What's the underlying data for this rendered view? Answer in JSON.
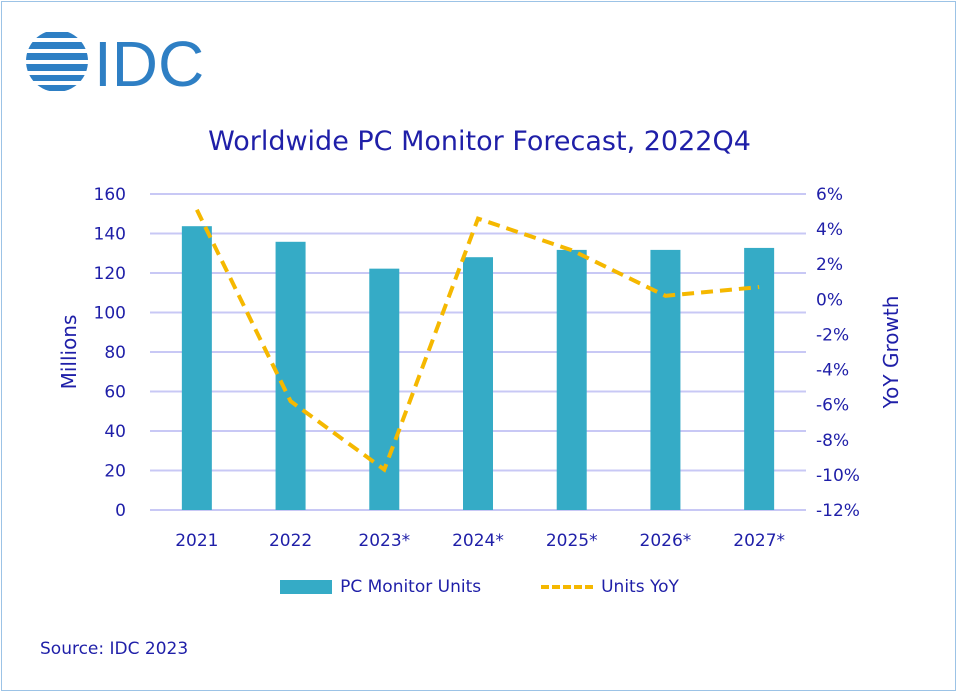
{
  "logo_text": "IDC",
  "chart_data": {
    "type": "bar+line",
    "title": "Worldwide PC Monitor Forecast, 2022Q4",
    "categories": [
      "2021",
      "2022",
      "2023*",
      "2024*",
      "2025*",
      "2026*",
      "2027*"
    ],
    "series": [
      {
        "name": "PC Monitor Units",
        "type": "bar",
        "axis": "left",
        "values": [
          143.7,
          135.8,
          122.2,
          128.0,
          131.7,
          131.7,
          132.7
        ]
      },
      {
        "name": "Units YoY",
        "type": "line",
        "axis": "right",
        "style": "dashed",
        "values": [
          5.1,
          -5.8,
          -9.7,
          4.6,
          2.8,
          0.2,
          0.7
        ]
      }
    ],
    "ylabel": "Millions",
    "ylim": [
      0,
      160
    ],
    "yticks": [
      "0",
      "20",
      "40",
      "60",
      "80",
      "100",
      "120",
      "140",
      "160"
    ],
    "y2label": "YoY Growth",
    "y2lim": [
      -12,
      6
    ],
    "y2ticks": [
      "-12%",
      "-10%",
      "-8%",
      "-6%",
      "-4%",
      "-2%",
      "0%",
      "2%",
      "4%",
      "6%"
    ],
    "grid": true,
    "legend": "bottom",
    "colors": {
      "bar": "#35abc6",
      "line": "#f5b800",
      "grid": "#c8c8f5",
      "text": "#1f1fa8"
    }
  },
  "source": "Source: IDC 2023"
}
